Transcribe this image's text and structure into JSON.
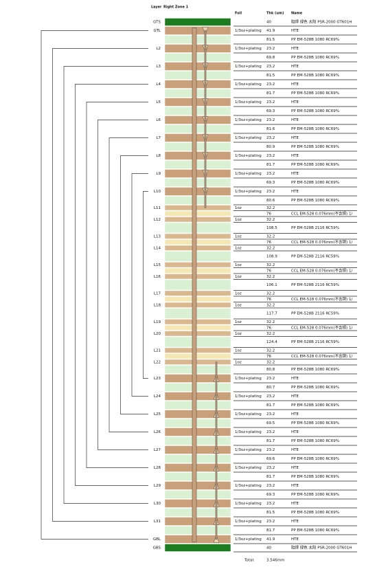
{
  "header": {
    "layer": "Layer",
    "zone": "Right Zone 1",
    "foil": "Foil",
    "thk": "Thk (um)",
    "name": "Name"
  },
  "rows": [
    {
      "kind": "mask",
      "layer": "GTS",
      "thk": 40,
      "name": "阻焊 绿色 太阳 PSR-2000 GT601H"
    },
    {
      "kind": "copper",
      "layer": "GTL",
      "foil": "1/3oz+plating",
      "thk": 41.9,
      "name": "HTE"
    },
    {
      "kind": "pp",
      "thk": 81.5,
      "name": "PP EM-528B 1080 RC69%"
    },
    {
      "kind": "copper",
      "layer": "L2",
      "foil": "1/3oz+plating",
      "thk": 23.2,
      "name": "HTE"
    },
    {
      "kind": "pp",
      "thk": 69.8,
      "name": "PP EM-528B 1080 RC69%"
    },
    {
      "kind": "copper",
      "layer": "L3",
      "foil": "1/3oz+plating",
      "thk": 23.2,
      "name": "HTE"
    },
    {
      "kind": "pp",
      "thk": 81.5,
      "name": "PP EM-528B 1080 RC69%"
    },
    {
      "kind": "copper",
      "layer": "L4",
      "foil": "1/3oz+plating",
      "thk": 23.2,
      "name": "HTE"
    },
    {
      "kind": "pp",
      "thk": 81.7,
      "name": "PP EM-528B 1080 RC69%"
    },
    {
      "kind": "copper",
      "layer": "L5",
      "foil": "1/3oz+plating",
      "thk": 23.2,
      "name": "HTE"
    },
    {
      "kind": "pp",
      "thk": 69.3,
      "name": "PP EM-528B 1080 RC69%"
    },
    {
      "kind": "copper",
      "layer": "L6",
      "foil": "1/3oz+plating",
      "thk": 23.2,
      "name": "HTE"
    },
    {
      "kind": "pp",
      "thk": 81.6,
      "name": "PP EM-528B 1080 RC69%"
    },
    {
      "kind": "copper",
      "layer": "L7",
      "foil": "1/3oz+plating",
      "thk": 23.2,
      "name": "HTE"
    },
    {
      "kind": "pp",
      "thk": 80.9,
      "name": "PP EM-528B 1080 RC69%"
    },
    {
      "kind": "copper",
      "layer": "L8",
      "foil": "1/3oz+plating",
      "thk": 23.2,
      "name": "HTE"
    },
    {
      "kind": "pp",
      "thk": 81.7,
      "name": "PP EM-528B 1080 RC69%"
    },
    {
      "kind": "copper",
      "layer": "L9",
      "foil": "1/3oz+plating",
      "thk": 23.2,
      "name": "HTE"
    },
    {
      "kind": "pp",
      "thk": 69.3,
      "name": "PP EM-528B 1080 RC69%"
    },
    {
      "kind": "copper",
      "layer": "L10",
      "foil": "1/3oz+plating",
      "thk": 23.2,
      "name": "HTE"
    },
    {
      "kind": "pp",
      "thk": 80.6,
      "name": "PP EM-528B 1080 RC69%"
    },
    {
      "kind": "cu",
      "layer": "L11",
      "foil": "1oz",
      "thk": 32.2
    },
    {
      "kind": "core",
      "thk": 76,
      "name": "CCL EM-528 0.076mm(不含铜) 1/"
    },
    {
      "kind": "cu",
      "layer": "L12",
      "foil": "1oz",
      "thk": 32.2
    },
    {
      "kind": "pp2",
      "thk": 108.5,
      "name": "PP EM-528B 2116 RC59%"
    },
    {
      "kind": "cu",
      "layer": "L13",
      "foil": "1oz",
      "thk": 32.2
    },
    {
      "kind": "core",
      "thk": 76,
      "name": "CCL EM-528 0.076mm(不含铜) 1/"
    },
    {
      "kind": "cu",
      "layer": "L14",
      "foil": "1oz",
      "thk": 32.2
    },
    {
      "kind": "pp2",
      "thk": 108.9,
      "name": "PP EM-528B 2116 RC59%"
    },
    {
      "kind": "cu",
      "layer": "L15",
      "foil": "1oz",
      "thk": 32.2
    },
    {
      "kind": "core",
      "thk": 76,
      "name": "CCL EM-528 0.076mm(不含铜) 1/"
    },
    {
      "kind": "cu",
      "layer": "L16",
      "foil": "1oz",
      "thk": 32.2
    },
    {
      "kind": "pp2",
      "thk": 106.1,
      "name": "PP EM-528B 2116 RC59%"
    },
    {
      "kind": "cu",
      "layer": "L17",
      "foil": "1oz",
      "thk": 32.2
    },
    {
      "kind": "core",
      "thk": 76,
      "name": "CCL EM-528 0.076mm(不含铜) 1/"
    },
    {
      "kind": "cu",
      "layer": "L18",
      "foil": "1oz",
      "thk": 32.2
    },
    {
      "kind": "pp2",
      "thk": 117.7,
      "name": "PP EM-528B 2116 RC59%"
    },
    {
      "kind": "cu",
      "layer": "L19",
      "foil": "1oz",
      "thk": 32.2
    },
    {
      "kind": "core",
      "thk": 76,
      "name": "CCL EM-528 0.076mm(不含铜) 1/"
    },
    {
      "kind": "cu",
      "layer": "L20",
      "foil": "1oz",
      "thk": 32.2
    },
    {
      "kind": "pp2",
      "thk": 124.4,
      "name": "PP EM-528B 2116 RC59%"
    },
    {
      "kind": "cu",
      "layer": "L21",
      "foil": "1oz",
      "thk": 32.2
    },
    {
      "kind": "core",
      "thk": 76,
      "name": "CCL EM-528 0.076mm(不含铜) 1/"
    },
    {
      "kind": "cu",
      "layer": "L22",
      "foil": "1oz",
      "thk": 32.2
    },
    {
      "kind": "pp",
      "thk": 80.8,
      "name": "PP EM-528B 1080 RC69%"
    },
    {
      "kind": "copper",
      "layer": "L23",
      "foil": "1/3oz+plating",
      "thk": 23.2,
      "name": "HTE"
    },
    {
      "kind": "pp",
      "thk": 80.7,
      "name": "PP EM-528B 1080 RC69%"
    },
    {
      "kind": "copper",
      "layer": "L24",
      "foil": "1/3oz+plating",
      "thk": 23.2,
      "name": "HTE"
    },
    {
      "kind": "pp",
      "thk": 81.7,
      "name": "PP EM-528B 1080 RC69%"
    },
    {
      "kind": "copper",
      "layer": "L25",
      "foil": "1/3oz+plating",
      "thk": 23.2,
      "name": "HTE"
    },
    {
      "kind": "pp",
      "thk": 69.5,
      "name": "PP EM-528B 1080 RC69%"
    },
    {
      "kind": "copper",
      "layer": "L26",
      "foil": "1/3oz+plating",
      "thk": 23.2,
      "name": "HTE"
    },
    {
      "kind": "pp",
      "thk": 81.7,
      "name": "PP EM-528B 1080 RC69%"
    },
    {
      "kind": "copper",
      "layer": "L27",
      "foil": "1/3oz+plating",
      "thk": 23.2,
      "name": "HTE"
    },
    {
      "kind": "pp",
      "thk": 69.6,
      "name": "PP EM-528B 1080 RC69%"
    },
    {
      "kind": "copper",
      "layer": "L28",
      "foil": "1/3oz+plating",
      "thk": 23.2,
      "name": "HTE"
    },
    {
      "kind": "pp",
      "thk": 81.7,
      "name": "PP EM-528B 1080 RC69%"
    },
    {
      "kind": "copper",
      "layer": "L29",
      "foil": "1/3oz+plating",
      "thk": 23.2,
      "name": "HTE"
    },
    {
      "kind": "pp",
      "thk": 69.3,
      "name": "PP EM-528B 1080 RC69%"
    },
    {
      "kind": "copper",
      "layer": "L30",
      "foil": "1/3oz+plating",
      "thk": 23.2,
      "name": "HTE"
    },
    {
      "kind": "pp",
      "thk": 81.5,
      "name": "PP EM-528B 1080 RC69%"
    },
    {
      "kind": "copper",
      "layer": "L31",
      "foil": "1/3oz+plating",
      "thk": 23.2,
      "name": "HTE"
    },
    {
      "kind": "pp",
      "thk": 81.7,
      "name": "PP EM-528B 1080 RC69%"
    },
    {
      "kind": "copper",
      "layer": "GBL",
      "foil": "1/3oz+plating",
      "thk": 41.9,
      "name": "HTE"
    },
    {
      "kind": "mask",
      "layer": "GBS",
      "thk": 40,
      "name": "阻焊 绿色 太阳 PSR-2000 GT601H"
    }
  ],
  "total": {
    "label": "Total:",
    "value": "3.546mm"
  }
}
